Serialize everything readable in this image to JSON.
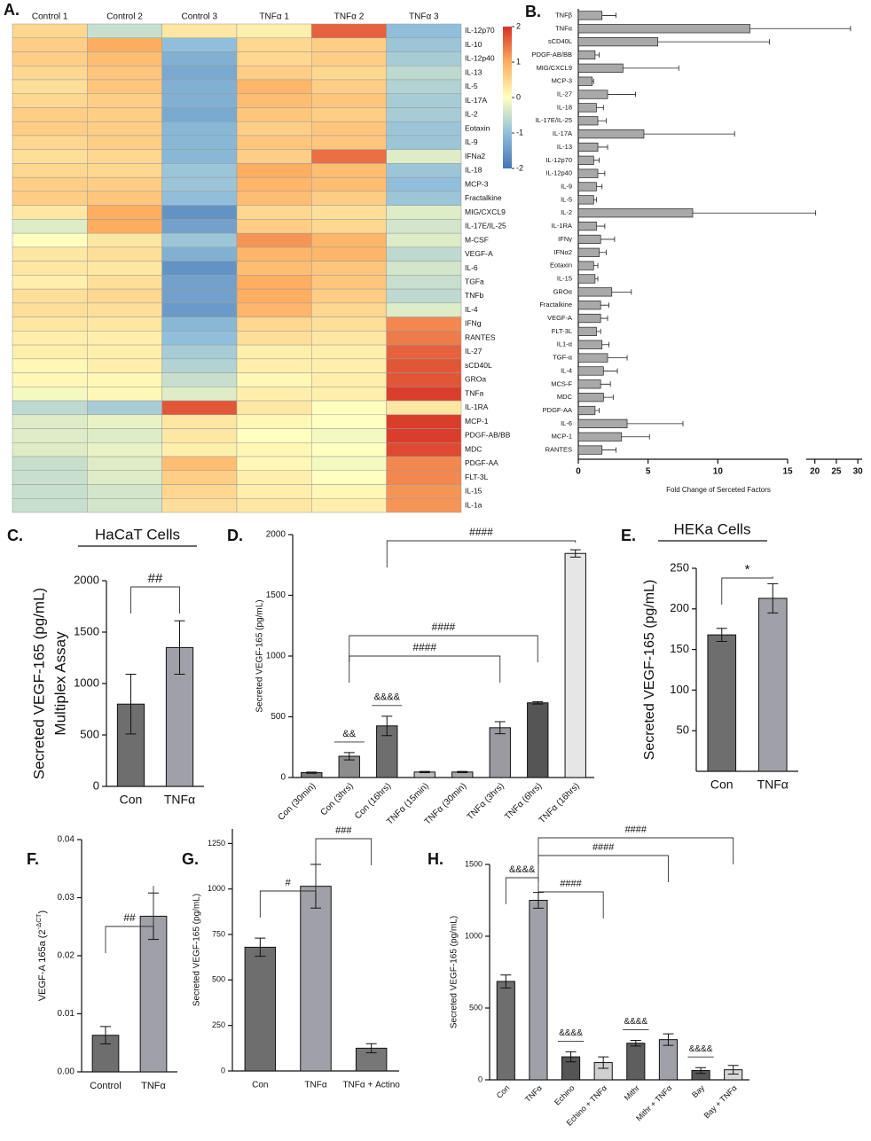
{
  "chart_data": [
    {
      "type": "heatmap",
      "panel": "A.",
      "x": [
        "Control 1",
        "Control 2",
        "Control 3",
        "TNFα 1",
        "TNFα 2",
        "TNFα 3"
      ],
      "y": [
        "IL-12p70",
        "IL-10",
        "IL-12p40",
        "IL-13",
        "IL-5",
        "IL-17A",
        "IL-2",
        "Eotaxin",
        "IL-9",
        "IFNa2",
        "IL-18",
        "MCP-3",
        "Fractalkine",
        "MIG/CXCL9",
        "IL-17E/IL-25",
        "M-CSF",
        "VEGF-A",
        "IL-6",
        "TGFa",
        "TNFb",
        "IL-4",
        "IFNg",
        "RANTES",
        "IL-27",
        "sCD40L",
        "GROa",
        "TNFa",
        "IL-1RA",
        "MCP-1",
        "PDGF-AB/BB",
        "MDC",
        "PDGF-AA",
        "FLT-3L",
        "IL-15",
        "IL-1a"
      ],
      "values": [
        [
          0.5,
          -0.5,
          0.3,
          0.2,
          1.6,
          -1.0
        ],
        [
          0.6,
          1.0,
          -1.0,
          0.5,
          0.6,
          -0.9
        ],
        [
          0.6,
          0.8,
          -1.2,
          0.5,
          0.6,
          -0.8
        ],
        [
          0.5,
          0.7,
          -1.3,
          0.6,
          0.5,
          -0.6
        ],
        [
          0.4,
          0.7,
          -1.2,
          0.9,
          0.6,
          -0.7
        ],
        [
          0.5,
          0.6,
          -1.2,
          0.8,
          0.7,
          -0.8
        ],
        [
          0.6,
          0.6,
          -1.3,
          0.7,
          0.6,
          -0.8
        ],
        [
          0.6,
          0.6,
          -1.1,
          0.6,
          0.7,
          -0.9
        ],
        [
          0.5,
          0.6,
          -1.1,
          0.7,
          0.7,
          -0.9
        ],
        [
          0.4,
          0.5,
          -1.1,
          0.6,
          1.5,
          -0.3
        ],
        [
          0.5,
          0.5,
          -0.9,
          1.0,
          0.8,
          -0.9
        ],
        [
          0.6,
          0.6,
          -0.9,
          0.9,
          0.8,
          -1.0
        ],
        [
          0.6,
          0.7,
          -1.0,
          0.8,
          0.6,
          -0.9
        ],
        [
          0.3,
          1.0,
          -1.6,
          0.5,
          0.4,
          -0.3
        ],
        [
          -0.3,
          1.0,
          -1.4,
          0.6,
          0.5,
          -0.4
        ],
        [
          0.0,
          0.3,
          -0.9,
          1.2,
          0.9,
          -0.3
        ],
        [
          0.3,
          0.4,
          -1.2,
          0.9,
          0.9,
          -0.6
        ],
        [
          0.3,
          0.3,
          -1.6,
          0.8,
          0.7,
          -0.4
        ],
        [
          0.2,
          0.4,
          -1.4,
          1.0,
          0.7,
          -0.5
        ],
        [
          0.4,
          0.5,
          -1.4,
          1.0,
          0.6,
          -0.6
        ],
        [
          0.4,
          0.4,
          -1.5,
          0.9,
          0.5,
          -0.3
        ],
        [
          0.3,
          0.3,
          -1.1,
          0.5,
          0.4,
          1.3
        ],
        [
          0.2,
          0.2,
          -1.0,
          0.4,
          0.3,
          1.4
        ],
        [
          0.2,
          0.2,
          -0.8,
          0.2,
          0.2,
          1.6
        ],
        [
          0.1,
          0.2,
          -0.7,
          0.2,
          0.2,
          1.7
        ],
        [
          0.1,
          0.1,
          -0.5,
          0.1,
          0.2,
          1.7
        ],
        [
          -0.1,
          0.1,
          -0.3,
          0.2,
          0.2,
          1.9
        ],
        [
          -0.6,
          -0.8,
          1.7,
          0.3,
          0.0,
          0.3
        ],
        [
          -0.3,
          -0.2,
          0.3,
          0.1,
          0.0,
          1.9
        ],
        [
          -0.3,
          -0.3,
          0.3,
          0.0,
          -0.1,
          1.9
        ],
        [
          -0.3,
          -0.2,
          0.2,
          0.1,
          0.0,
          1.8
        ],
        [
          -0.5,
          -0.3,
          0.8,
          0.1,
          -0.1,
          1.3
        ],
        [
          -0.5,
          -0.3,
          0.6,
          0.2,
          0.0,
          1.3
        ],
        [
          -0.5,
          -0.4,
          0.5,
          0.2,
          0.1,
          1.2
        ],
        [
          -0.5,
          -0.4,
          0.4,
          0.3,
          0.2,
          1.2
        ]
      ],
      "zlim": [
        -2,
        2
      ],
      "zticks": [
        2,
        1,
        0,
        -1,
        -2
      ]
    },
    {
      "type": "barh",
      "panel": "B.",
      "categories": [
        "TNFβ",
        "TNFα",
        "sCD40L",
        "PDGF-AB/BB",
        "MIG/CXCL9",
        "MCP-3",
        "IL-27",
        "IL-18",
        "IL-17E/IL-25",
        "IL-17A",
        "IL-13",
        "IL-12p70",
        "IL-12p40",
        "IL-9",
        "IL-5",
        "IL-2",
        "IL-1RA",
        "IFNγ",
        "IFNα2",
        "Eotaxin",
        "IL-15",
        "GROα",
        "Fractalkine",
        "VEGF-A",
        "FLT-3L",
        "IL1-α",
        "TGF-α",
        "IL-4",
        "MCS-F",
        "MDC",
        "PDGF-AA",
        "IL-6",
        "MCP-1",
        "RANTES"
      ],
      "values": [
        1.7,
        12.3,
        5.7,
        1.2,
        3.2,
        1.0,
        2.1,
        1.3,
        1.4,
        4.7,
        1.4,
        1.1,
        1.4,
        1.3,
        1.1,
        8.2,
        1.3,
        1.6,
        1.5,
        1.1,
        1.2,
        2.4,
        1.6,
        1.6,
        1.3,
        1.7,
        2.1,
        1.8,
        1.6,
        1.8,
        1.2,
        3.5,
        3.1,
        1.7
      ],
      "errors": [
        1.0,
        16,
        8,
        0.3,
        4,
        0.1,
        2,
        0.5,
        0.6,
        6.5,
        0.7,
        0.4,
        0.5,
        0.4,
        0.2,
        12,
        0.6,
        1.0,
        0.5,
        0.3,
        0.2,
        1.4,
        0.6,
        0.5,
        0.3,
        0.5,
        1.4,
        1.0,
        0.7,
        0.7,
        0.3,
        4,
        2,
        1.0
      ],
      "color": "#a9a9a9",
      "xlim": [
        [
          0,
          15
        ],
        [
          18,
          31
        ]
      ],
      "xticks": [
        0,
        5,
        10,
        15,
        20,
        25,
        30
      ],
      "xlabel": "Fold Change of Serceted Factors"
    },
    {
      "type": "bar",
      "panel": "C.",
      "title": "HaCaT Cells",
      "categories": [
        "Con",
        "TNFα"
      ],
      "values": [
        800,
        1350
      ],
      "errors": [
        290,
        260
      ],
      "colors": [
        "#6e6e6e",
        "#a0a0a8"
      ],
      "ylim": [
        0,
        2000
      ],
      "yticks": [
        0,
        500,
        1000,
        1500,
        2000
      ],
      "ylabel": [
        "Secreted VEGF-165 (pg/mL)",
        "Multiplex Assay"
      ],
      "brackets": [
        {
          "label": "##",
          "from": 0,
          "to": 1
        }
      ]
    },
    {
      "type": "bar",
      "panel": "D.",
      "categories": [
        "Con (30min)",
        "Con (3hrs)",
        "Con (16hrs)",
        "TNFα (15min)",
        "TNFα (30min)",
        "TNFα (3hrs)",
        "TNFα (6hrs)",
        "TNFα (16hrs)"
      ],
      "values": [
        40,
        175,
        425,
        45,
        45,
        410,
        615,
        1845
      ],
      "errors": [
        5,
        30,
        80,
        5,
        5,
        50,
        10,
        30
      ],
      "colors": [
        "#7a7a7a",
        "#8c8c8c",
        "#6e6e6e",
        "#bdbdbd",
        "#a8a8a8",
        "#9a9aa0",
        "#555555",
        "#e6e6e6"
      ],
      "ylim": [
        0,
        2000
      ],
      "yticks": [
        0,
        500,
        1000,
        1500,
        2000
      ],
      "ylabel": "Secreted VEGF-165 (pg/mL)",
      "brackets": [
        {
          "label": "####",
          "from": 2,
          "to": 7
        },
        {
          "label": "####",
          "from": 1,
          "to": 6
        },
        {
          "label": "####",
          "from": 1,
          "to": 5
        }
      ],
      "marks": [
        {
          "label": "&&",
          "at": 1
        },
        {
          "label": "&&&&",
          "at": 2
        }
      ]
    },
    {
      "type": "bar",
      "panel": "E.",
      "title": "HEKa Cells",
      "categories": [
        "Con",
        "TNFα"
      ],
      "values": [
        168,
        213
      ],
      "errors": [
        8,
        18
      ],
      "colors": [
        "#6e6e6e",
        "#a0a0a8"
      ],
      "ylim": [
        0,
        250
      ],
      "yticks": [
        50,
        100,
        150,
        200,
        250
      ],
      "ylabel": "Secreted VEGF-165 (pg/mL)",
      "brackets": [
        {
          "label": "*",
          "from": 0,
          "to": 1
        }
      ]
    },
    {
      "type": "bar",
      "panel": "F.",
      "categories": [
        "Control",
        "TNFα"
      ],
      "values": [
        0.0063,
        0.0268
      ],
      "errors": [
        0.0015,
        0.004
      ],
      "colors": [
        "#6e6e6e",
        "#a0a0a8"
      ],
      "ylim": [
        0,
        0.04
      ],
      "yticks": [
        {
          "value": 0,
          "label": "0.00"
        },
        {
          "value": 0.01,
          "label": "0.01"
        },
        {
          "value": 0.02,
          "label": "0.02"
        },
        {
          "value": 0.03,
          "label": "0.03"
        },
        {
          "value": 0.04,
          "label": "0.04"
        }
      ],
      "ylabel": [
        "VEGF-A 165a (2",
        "-ΔCT",
        ")"
      ],
      "brackets": [
        {
          "label": "##",
          "from": 0,
          "to": 1
        }
      ]
    },
    {
      "type": "bar",
      "panel": "G.",
      "categories": [
        "Con",
        "TNFα",
        "TNFα + Actino"
      ],
      "values": [
        680,
        1015,
        125
      ],
      "errors": [
        50,
        120,
        25
      ],
      "colors": [
        "#6e6e6e",
        "#a0a0a8",
        "#777777"
      ],
      "ylim": [
        0,
        1330
      ],
      "yticks": [
        0,
        250,
        500,
        750,
        1000,
        1250
      ],
      "ylabel": "Secreted VEGF-165 (pg/mL)",
      "brackets": [
        {
          "label": "#",
          "from": 0,
          "to": 1
        },
        {
          "label": "###",
          "from": 1,
          "to": 2
        }
      ]
    },
    {
      "type": "bar",
      "panel": "H.",
      "categories": [
        "Con",
        "TNFα",
        "Echino",
        "Echino + TNFα",
        "Mithr",
        "Mithr + TNFα",
        "Bay",
        "Bay + TNFα"
      ],
      "values": [
        685,
        1250,
        160,
        120,
        255,
        280,
        65,
        70
      ],
      "errors": [
        45,
        55,
        35,
        40,
        20,
        40,
        20,
        30
      ],
      "colors": [
        "#6e6e6e",
        "#a0a0a8",
        "#555555",
        "#d0d0d0",
        "#5e5e5e",
        "#a0a0a8",
        "#555555",
        "#d6d6d6"
      ],
      "ylim": [
        0,
        1500
      ],
      "yticks": [
        0,
        500,
        1000,
        1500
      ],
      "ylabel": "Secreted VEGF-165 (pg/mL)",
      "brackets": [
        {
          "label": "&&&&",
          "from": 0,
          "to": 1
        },
        {
          "label": "####",
          "from": 1,
          "to": 3
        },
        {
          "label": "####",
          "from": 1,
          "to": 5
        },
        {
          "label": "####",
          "from": 1,
          "to": 7
        }
      ],
      "marks": [
        {
          "label": "&&&&",
          "at": 2
        },
        {
          "label": "&&&&",
          "at": 4
        },
        {
          "label": "&&&&",
          "at": 6
        }
      ]
    }
  ]
}
